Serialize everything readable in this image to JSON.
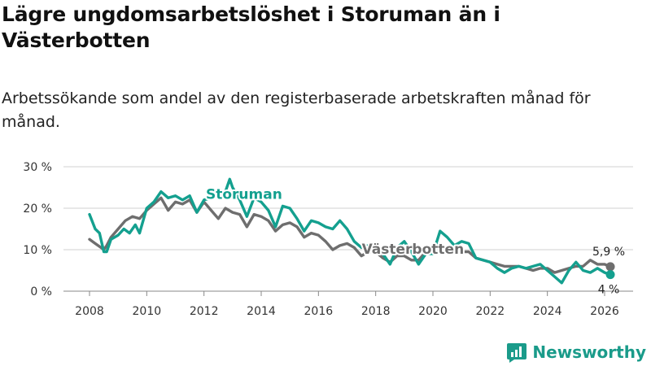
{
  "title": "Lägre ungdomsarbetslöshet i Storuman än i Västerbotten",
  "subtitle": "Arbetssökande som andel av den registerbaserade arbetskraften månad för månad.",
  "brand": "Newsworthy",
  "colors": {
    "storuman": "#14a08f",
    "vasterbotten": "#6e6e6e",
    "grid": "#d0d0d0"
  },
  "chart_data": {
    "type": "line",
    "title": "Lägre ungdomsarbetslöshet i Storuman än i Västerbotten",
    "xlabel": "",
    "ylabel": "",
    "xlim": [
      2008,
      2026.2
    ],
    "ylim": [
      0,
      30
    ],
    "yticks": [
      0,
      10,
      20,
      30
    ],
    "ytick_labels": [
      "0 %",
      "10 %",
      "20 %",
      "30 %"
    ],
    "xticks": [
      2008,
      2010,
      2012,
      2014,
      2016,
      2018,
      2020,
      2022,
      2024,
      2026
    ],
    "xtick_labels": [
      "2008",
      "2010",
      "2012",
      "2014",
      "2016",
      "2018",
      "2020",
      "2022",
      "2024",
      "2026"
    ],
    "grid": true,
    "legend": "inline labels",
    "series": [
      {
        "name": "Västerbotten",
        "end_label": "5,9 %",
        "points": [
          [
            2008.0,
            12.5
          ],
          [
            2008.2,
            11.5
          ],
          [
            2008.4,
            10.5
          ],
          [
            2008.5,
            10.0
          ],
          [
            2008.6,
            11.0
          ],
          [
            2008.75,
            13.0
          ],
          [
            2009.0,
            15.0
          ],
          [
            2009.25,
            17.0
          ],
          [
            2009.5,
            18.0
          ],
          [
            2009.75,
            17.5
          ],
          [
            2010.0,
            19.5
          ],
          [
            2010.25,
            21.0
          ],
          [
            2010.5,
            22.5
          ],
          [
            2010.75,
            19.5
          ],
          [
            2011.0,
            21.5
          ],
          [
            2011.25,
            21.0
          ],
          [
            2011.5,
            22.0
          ],
          [
            2011.75,
            19.0
          ],
          [
            2012.0,
            21.5
          ],
          [
            2012.25,
            19.5
          ],
          [
            2012.5,
            17.5
          ],
          [
            2012.75,
            20.0
          ],
          [
            2013.0,
            19.0
          ],
          [
            2013.25,
            18.5
          ],
          [
            2013.5,
            15.5
          ],
          [
            2013.75,
            18.5
          ],
          [
            2014.0,
            18.0
          ],
          [
            2014.25,
            17.0
          ],
          [
            2014.5,
            14.5
          ],
          [
            2014.75,
            16.0
          ],
          [
            2015.0,
            16.5
          ],
          [
            2015.25,
            15.5
          ],
          [
            2015.5,
            13.0
          ],
          [
            2015.75,
            14.0
          ],
          [
            2016.0,
            13.5
          ],
          [
            2016.25,
            12.0
          ],
          [
            2016.5,
            10.0
          ],
          [
            2016.75,
            11.0
          ],
          [
            2017.0,
            11.5
          ],
          [
            2017.25,
            10.5
          ],
          [
            2017.5,
            8.5
          ],
          [
            2017.75,
            9.5
          ],
          [
            2018.0,
            9.5
          ],
          [
            2018.25,
            8.0
          ],
          [
            2018.5,
            7.0
          ],
          [
            2018.75,
            8.5
          ],
          [
            2019.0,
            8.5
          ],
          [
            2019.25,
            7.5
          ],
          [
            2019.5,
            7.5
          ],
          [
            2019.75,
            9.5
          ],
          [
            2020.0,
            10.0
          ],
          [
            2020.25,
            11.0
          ],
          [
            2020.5,
            10.0
          ],
          [
            2020.75,
            10.5
          ],
          [
            2021.0,
            9.5
          ],
          [
            2021.25,
            9.5
          ],
          [
            2021.5,
            8.0
          ],
          [
            2021.75,
            7.5
          ],
          [
            2022.0,
            7.0
          ],
          [
            2022.25,
            6.5
          ],
          [
            2022.5,
            6.0
          ],
          [
            2022.75,
            6.0
          ],
          [
            2023.0,
            6.0
          ],
          [
            2023.25,
            5.5
          ],
          [
            2023.5,
            5.0
          ],
          [
            2023.75,
            5.5
          ],
          [
            2024.0,
            5.5
          ],
          [
            2024.25,
            4.5
          ],
          [
            2024.5,
            5.0
          ],
          [
            2024.75,
            5.5
          ],
          [
            2025.0,
            6.0
          ],
          [
            2025.25,
            6.0
          ],
          [
            2025.5,
            7.5
          ],
          [
            2025.75,
            6.5
          ],
          [
            2026.0,
            6.5
          ],
          [
            2026.2,
            5.9
          ]
        ]
      },
      {
        "name": "Storuman",
        "end_label": "4 %",
        "points": [
          [
            2008.0,
            18.5
          ],
          [
            2008.2,
            15.0
          ],
          [
            2008.35,
            14.0
          ],
          [
            2008.5,
            9.5
          ],
          [
            2008.6,
            9.5
          ],
          [
            2008.75,
            12.5
          ],
          [
            2009.0,
            13.5
          ],
          [
            2009.2,
            15.0
          ],
          [
            2009.4,
            14.0
          ],
          [
            2009.6,
            16.0
          ],
          [
            2009.75,
            14.0
          ],
          [
            2010.0,
            20.0
          ],
          [
            2010.25,
            21.5
          ],
          [
            2010.5,
            24.0
          ],
          [
            2010.75,
            22.5
          ],
          [
            2011.0,
            23.0
          ],
          [
            2011.25,
            22.0
          ],
          [
            2011.5,
            23.0
          ],
          [
            2011.75,
            19.0
          ],
          [
            2012.0,
            22.0
          ],
          [
            2012.25,
            22.5
          ],
          [
            2012.5,
            23.5
          ],
          [
            2012.75,
            24.0
          ],
          [
            2012.9,
            27.0
          ],
          [
            2013.0,
            25.0
          ],
          [
            2013.25,
            22.0
          ],
          [
            2013.5,
            18.0
          ],
          [
            2013.75,
            22.5
          ],
          [
            2014.0,
            21.5
          ],
          [
            2014.25,
            19.5
          ],
          [
            2014.5,
            15.5
          ],
          [
            2014.75,
            20.5
          ],
          [
            2015.0,
            20.0
          ],
          [
            2015.25,
            17.5
          ],
          [
            2015.5,
            14.5
          ],
          [
            2015.75,
            17.0
          ],
          [
            2016.0,
            16.5
          ],
          [
            2016.25,
            15.5
          ],
          [
            2016.5,
            15.0
          ],
          [
            2016.75,
            17.0
          ],
          [
            2017.0,
            15.0
          ],
          [
            2017.25,
            12.0
          ],
          [
            2017.5,
            10.5
          ],
          [
            2017.75,
            11.0
          ],
          [
            2018.0,
            10.0
          ],
          [
            2018.25,
            9.0
          ],
          [
            2018.5,
            6.5
          ],
          [
            2018.75,
            10.5
          ],
          [
            2019.0,
            12.0
          ],
          [
            2019.25,
            9.5
          ],
          [
            2019.5,
            6.5
          ],
          [
            2019.75,
            9.0
          ],
          [
            2020.0,
            9.0
          ],
          [
            2020.25,
            14.5
          ],
          [
            2020.5,
            13.0
          ],
          [
            2020.75,
            11.0
          ],
          [
            2021.0,
            12.0
          ],
          [
            2021.25,
            11.5
          ],
          [
            2021.5,
            8.0
          ],
          [
            2021.75,
            7.5
          ],
          [
            2022.0,
            7.0
          ],
          [
            2022.25,
            5.5
          ],
          [
            2022.5,
            4.5
          ],
          [
            2022.75,
            5.5
          ],
          [
            2023.0,
            6.0
          ],
          [
            2023.25,
            5.5
          ],
          [
            2023.5,
            6.0
          ],
          [
            2023.75,
            6.5
          ],
          [
            2024.0,
            5.0
          ],
          [
            2024.25,
            3.5
          ],
          [
            2024.5,
            2.0
          ],
          [
            2024.75,
            5.0
          ],
          [
            2025.0,
            7.0
          ],
          [
            2025.25,
            5.0
          ],
          [
            2025.5,
            4.5
          ],
          [
            2025.75,
            5.5
          ],
          [
            2026.0,
            4.5
          ],
          [
            2026.2,
            4.0
          ]
        ]
      }
    ],
    "annotations": [
      {
        "text": "Storuman",
        "x": 2013.4,
        "y": 22.3,
        "series": "Storuman"
      },
      {
        "text": "Västerbotten",
        "x": 2019.3,
        "y": 9.0,
        "series": "Västerbotten"
      }
    ]
  }
}
